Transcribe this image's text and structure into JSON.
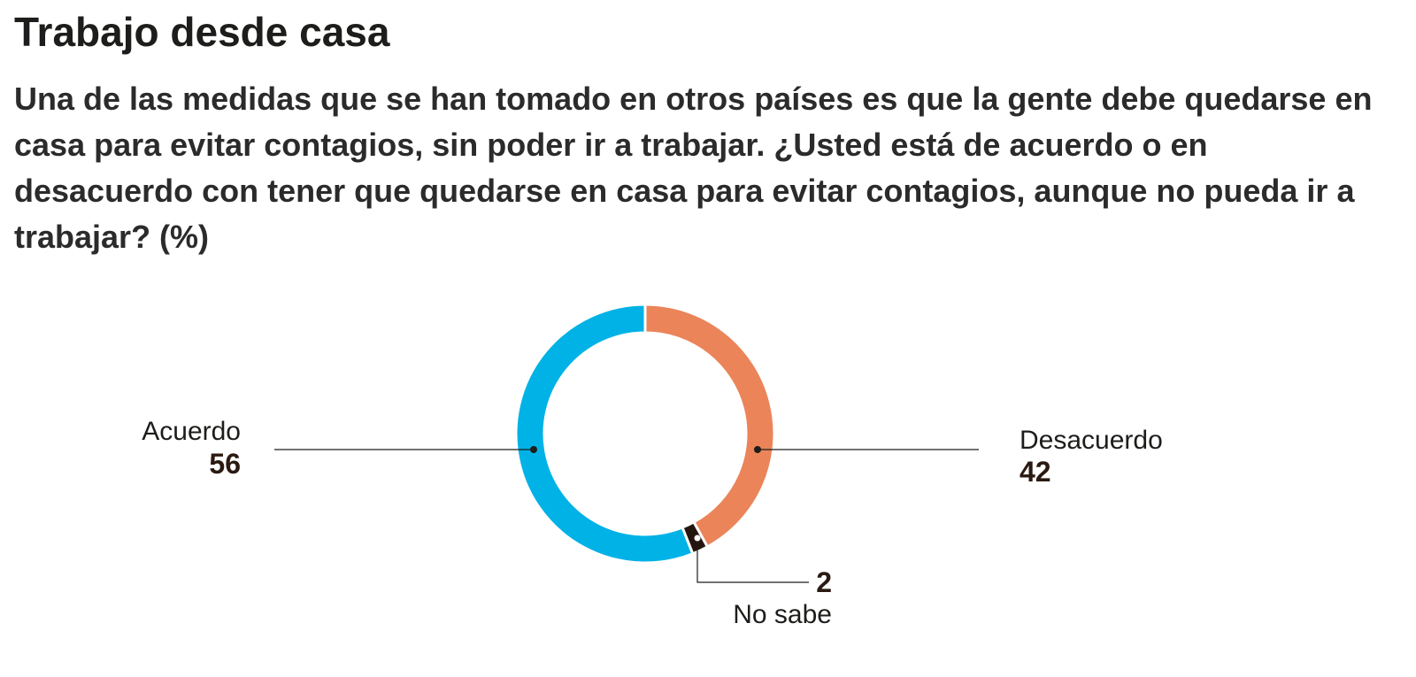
{
  "header": {
    "title": "Trabajo desde casa",
    "subtitle": "Una de las medidas que se han tomado en otros países es que la gente debe quedarse en casa para evitar contagios, sin poder ir a trabajar. ¿Usted está de acuerdo o en desacuerdo con tener que quedarse en casa para evitar contagios, aunque no pueda ir a trabajar?  (%)"
  },
  "chart_data": {
    "type": "pie",
    "variant": "donut",
    "title": "Trabajo desde casa",
    "categories": [
      "Desacuerdo",
      "No sabe",
      "Acuerdo"
    ],
    "values": [
      42,
      2,
      56
    ],
    "colors": [
      "#eb8459",
      "#24160f",
      "#00b2e6"
    ],
    "unit": "%",
    "legend": "none",
    "labels": [
      {
        "name": "Acuerdo",
        "value": "56"
      },
      {
        "name": "Desacuerdo",
        "value": "42"
      },
      {
        "name": "No sabe",
        "value": "2"
      }
    ]
  }
}
